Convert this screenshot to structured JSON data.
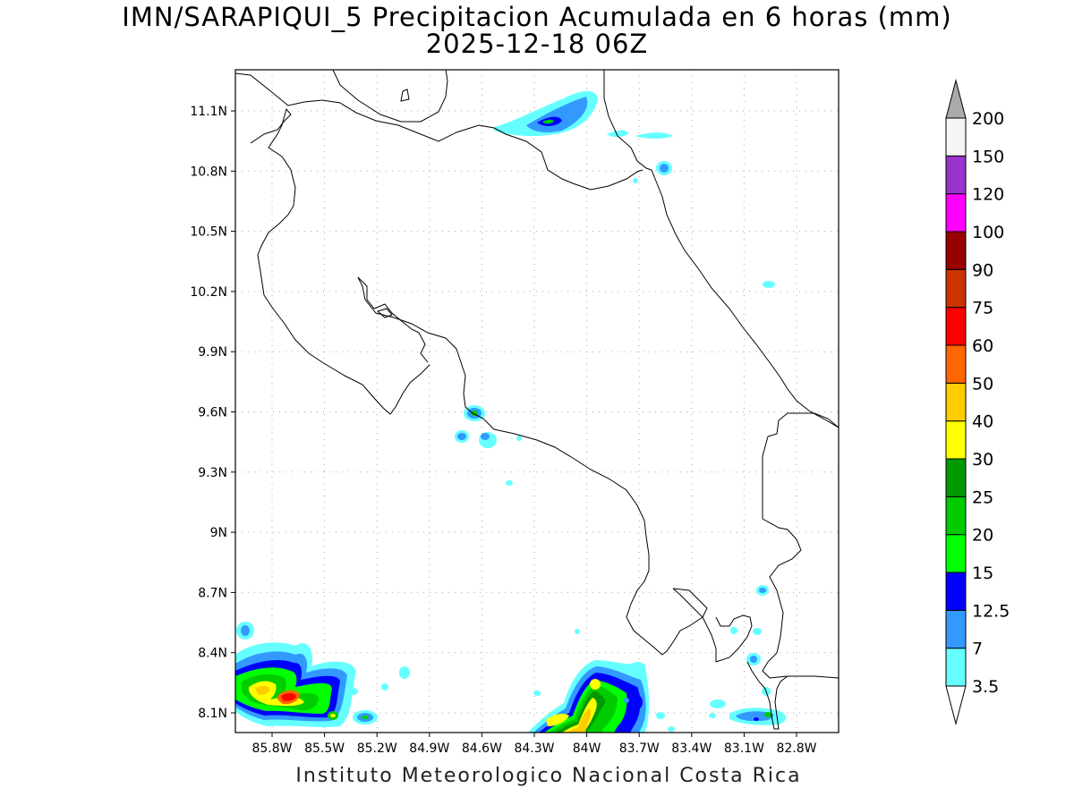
{
  "title": {
    "line1": "IMN/SARAPIQUI_5 Precipitacion Acumulada en 6 horas (mm)",
    "line2": "2025-12-18 06Z"
  },
  "footer": "Instituto Meteorologico Nacional Costa Rica",
  "map": {
    "lon_range": [
      -86.0,
      -82.6
    ],
    "lat_range": [
      8.0,
      11.3
    ],
    "lat_ticks": [
      "11.1N",
      "10.8N",
      "10.5N",
      "10.2N",
      "9.9N",
      "9.6N",
      "9.3N",
      "9N",
      "8.7N",
      "8.4N",
      "8.1N"
    ],
    "lon_ticks": [
      "85.8W",
      "85.5W",
      "85.2W",
      "84.9W",
      "84.6W",
      "84.3W",
      "84W",
      "83.7W",
      "83.4W",
      "83.1W",
      "82.8W"
    ],
    "grid": true,
    "grid_style": "dotted"
  },
  "colorbar": {
    "levels": [
      "3.5",
      "7",
      "12.5",
      "15",
      "20",
      "25",
      "30",
      "40",
      "50",
      "60",
      "75",
      "90",
      "100",
      "120",
      "150",
      "200"
    ],
    "colors": [
      "#66ffff",
      "#3399ff",
      "#0000ff",
      "#00ff00",
      "#00cc00",
      "#009900",
      "#ffff00",
      "#ffcc00",
      "#ff6600",
      "#ff0000",
      "#cc3300",
      "#990000",
      "#ff00ff",
      "#9933cc",
      "#f5f5f5"
    ],
    "over_color": "#aaaaaa",
    "under_color": "#ffffff"
  }
}
